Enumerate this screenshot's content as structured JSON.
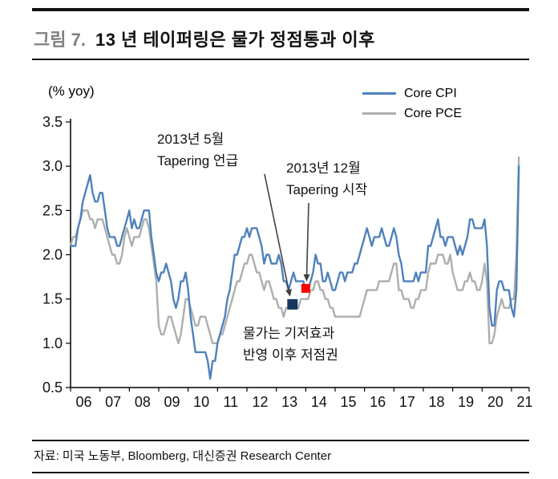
{
  "header": {
    "figure_label": "그림 7.",
    "title": "13 년 테이퍼링은 물가 정점통과 이후"
  },
  "annotations": {
    "tapering_mention": {
      "line1": "2013년 5월",
      "line2": "Tapering 언급"
    },
    "tapering_start": {
      "line1": "2013년 12월",
      "line2": "Tapering 시작"
    },
    "low_note": {
      "line1": "물가는 기저효과",
      "line2": "반영 이후 저점권"
    }
  },
  "footer": {
    "source": "자료: 미국 노동부, Bloomberg, 대신증권 Research Center"
  },
  "chart_data": {
    "type": "line",
    "unit_label": "(% yoy)",
    "x_start": 2006,
    "x_end": 2021.6,
    "x_step_months": 1,
    "ylim": [
      0.5,
      3.5
    ],
    "yticks": [
      3.5,
      3.0,
      2.5,
      2.0,
      1.5,
      1.0,
      0.5
    ],
    "xtick_labels": [
      "06",
      "07",
      "08",
      "09",
      "10",
      "11",
      "12",
      "13",
      "14",
      "15",
      "16",
      "17",
      "18",
      "19",
      "20",
      "21"
    ],
    "legend_position": "top-right",
    "axis_color": "#000000",
    "series": [
      {
        "name": "Core CPI",
        "color": "#4f81bd",
        "values": [
          2.1,
          2.1,
          2.1,
          2.3,
          2.4,
          2.6,
          2.7,
          2.8,
          2.9,
          2.7,
          2.6,
          2.6,
          2.7,
          2.7,
          2.5,
          2.3,
          2.2,
          2.2,
          2.2,
          2.1,
          2.1,
          2.2,
          2.3,
          2.4,
          2.5,
          2.3,
          2.4,
          2.3,
          2.3,
          2.4,
          2.5,
          2.5,
          2.5,
          2.2,
          2.0,
          1.8,
          1.7,
          1.8,
          1.8,
          1.9,
          1.8,
          1.7,
          1.5,
          1.4,
          1.5,
          1.7,
          1.7,
          1.8,
          1.6,
          1.3,
          1.1,
          0.9,
          0.9,
          0.9,
          0.9,
          0.9,
          0.8,
          0.6,
          0.8,
          0.8,
          1.0,
          1.1,
          1.2,
          1.3,
          1.5,
          1.6,
          1.8,
          2.0,
          2.0,
          2.1,
          2.2,
          2.2,
          2.3,
          2.2,
          2.3,
          2.3,
          2.3,
          2.2,
          2.1,
          1.9,
          2.0,
          2.0,
          1.9,
          1.9,
          1.9,
          2.0,
          1.9,
          1.7,
          1.7,
          1.6,
          1.7,
          1.8,
          1.7,
          1.7,
          1.7,
          1.7,
          1.6,
          1.6,
          1.7,
          1.8,
          2.0,
          1.9,
          1.9,
          1.7,
          1.7,
          1.8,
          1.7,
          1.6,
          1.6,
          1.7,
          1.8,
          1.8,
          1.7,
          1.8,
          1.8,
          1.8,
          1.9,
          1.9,
          2.0,
          2.1,
          2.2,
          2.3,
          2.2,
          2.1,
          2.2,
          2.2,
          2.2,
          2.3,
          2.2,
          2.1,
          2.1,
          2.2,
          2.3,
          2.2,
          2.0,
          1.9,
          1.7,
          1.7,
          1.7,
          1.7,
          1.7,
          1.8,
          1.7,
          1.8,
          1.8,
          1.8,
          2.1,
          2.1,
          2.2,
          2.3,
          2.4,
          2.2,
          2.2,
          2.1,
          2.2,
          2.2,
          2.2,
          2.1,
          2.0,
          2.1,
          2.0,
          2.1,
          2.2,
          2.4,
          2.4,
          2.3,
          2.3,
          2.3,
          2.3,
          2.4,
          2.1,
          1.4,
          1.2,
          1.2,
          1.6,
          1.7,
          1.7,
          1.6,
          1.6,
          1.6,
          1.4,
          1.3,
          1.6,
          3.0
        ]
      },
      {
        "name": "Core PCE",
        "color": "#aeaeae",
        "values": [
          2.1,
          2.2,
          2.2,
          2.3,
          2.4,
          2.5,
          2.5,
          2.5,
          2.4,
          2.4,
          2.3,
          2.4,
          2.4,
          2.4,
          2.3,
          2.2,
          2.1,
          2.0,
          2.0,
          1.9,
          1.9,
          2.0,
          2.2,
          2.3,
          2.2,
          2.1,
          2.2,
          2.2,
          2.2,
          2.3,
          2.4,
          2.4,
          2.3,
          2.1,
          1.9,
          1.7,
          1.2,
          1.1,
          1.1,
          1.2,
          1.3,
          1.3,
          1.2,
          1.1,
          1.0,
          1.1,
          1.3,
          1.5,
          1.5,
          1.4,
          1.3,
          1.2,
          1.2,
          1.3,
          1.3,
          1.3,
          1.2,
          1.1,
          1.0,
          1.0,
          1.0,
          1.1,
          1.1,
          1.2,
          1.3,
          1.4,
          1.5,
          1.6,
          1.7,
          1.7,
          1.8,
          1.9,
          1.9,
          2.0,
          2.0,
          1.9,
          1.8,
          1.8,
          1.7,
          1.6,
          1.7,
          1.7,
          1.6,
          1.5,
          1.5,
          1.4,
          1.4,
          1.3,
          1.4,
          1.4,
          1.4,
          1.4,
          1.4,
          1.4,
          1.5,
          1.5,
          1.5,
          1.5,
          1.6,
          1.6,
          1.7,
          1.7,
          1.6,
          1.6,
          1.5,
          1.5,
          1.4,
          1.4,
          1.3,
          1.3,
          1.3,
          1.3,
          1.3,
          1.3,
          1.3,
          1.3,
          1.3,
          1.3,
          1.3,
          1.4,
          1.5,
          1.6,
          1.6,
          1.6,
          1.6,
          1.6,
          1.7,
          1.7,
          1.7,
          1.7,
          1.7,
          1.8,
          1.9,
          1.9,
          1.6,
          1.6,
          1.5,
          1.5,
          1.5,
          1.4,
          1.4,
          1.5,
          1.5,
          1.6,
          1.6,
          1.6,
          1.8,
          1.9,
          1.9,
          1.9,
          2.0,
          2.0,
          2.0,
          1.9,
          1.9,
          2.0,
          1.8,
          1.7,
          1.6,
          1.6,
          1.6,
          1.7,
          1.7,
          1.8,
          1.7,
          1.7,
          1.6,
          1.6,
          1.7,
          1.9,
          1.7,
          1.0,
          1.0,
          1.1,
          1.3,
          1.4,
          1.5,
          1.4,
          1.4,
          1.4,
          1.5,
          1.5,
          2.0,
          3.1
        ]
      }
    ],
    "markers": [
      {
        "name": "tapering-mention-marker",
        "x": 2013.55,
        "y": 1.44,
        "color": "#17375e",
        "size": 13
      },
      {
        "name": "tapering-start-marker",
        "x": 2014.0,
        "y": 1.62,
        "color": "#ff0000",
        "size": 11
      }
    ]
  }
}
